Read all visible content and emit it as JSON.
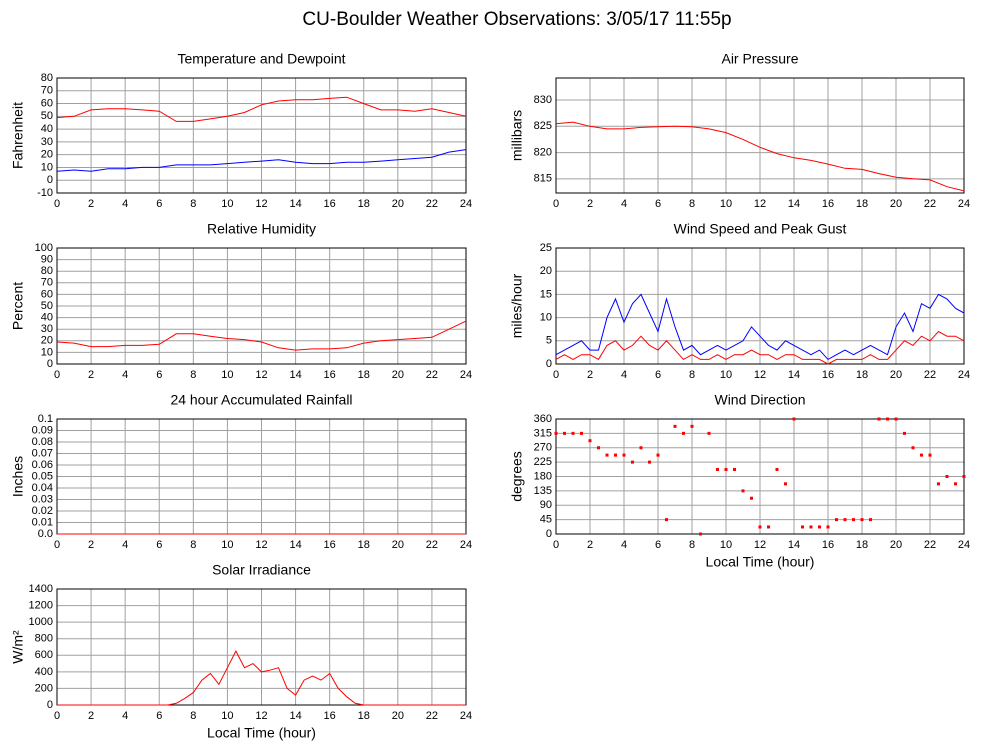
{
  "title": "CU-Boulder Weather Observations: 3/05/17 11:55p",
  "chart_data": [
    {
      "type": "line",
      "title": "Temperature and Dewpoint",
      "ylabel": "Fahrenheit",
      "x": [
        0,
        1,
        2,
        3,
        4,
        5,
        6,
        7,
        8,
        9,
        10,
        11,
        12,
        13,
        14,
        15,
        16,
        17,
        18,
        19,
        20,
        21,
        22,
        23,
        24
      ],
      "xlim": [
        0,
        24
      ],
      "xticks": [
        0,
        2,
        4,
        6,
        8,
        10,
        12,
        14,
        16,
        18,
        20,
        22,
        24
      ],
      "ylim": [
        -10,
        80
      ],
      "yticks": [
        -10,
        0,
        10,
        20,
        30,
        40,
        50,
        60,
        70,
        80
      ],
      "grid": true,
      "series": [
        {
          "color": "#ff0000",
          "values": [
            49,
            50,
            55,
            56,
            56,
            55,
            54,
            46,
            46,
            48,
            50,
            53,
            59,
            62,
            63,
            63,
            64,
            65,
            60,
            55,
            55,
            54,
            56,
            53,
            50
          ]
        },
        {
          "color": "#0000ff",
          "values": [
            7,
            8,
            7,
            9,
            9,
            10,
            10,
            12,
            12,
            12,
            13,
            14,
            15,
            16,
            14,
            13,
            13,
            14,
            14,
            15,
            16,
            17,
            18,
            22,
            24
          ]
        }
      ]
    },
    {
      "type": "line",
      "title": "Air Pressure",
      "ylabel": "millibars",
      "x": [
        0,
        1,
        2,
        3,
        4,
        5,
        6,
        7,
        8,
        9,
        10,
        11,
        12,
        13,
        14,
        15,
        16,
        17,
        18,
        19,
        20,
        21,
        22,
        23,
        24
      ],
      "xlim": [
        0,
        24
      ],
      "xticks": [
        0,
        2,
        4,
        6,
        8,
        10,
        12,
        14,
        16,
        18,
        20,
        22,
        24
      ],
      "ylim": [
        812.3,
        834.2
      ],
      "yticks": [
        815,
        820,
        825,
        830
      ],
      "grid": true,
      "series": [
        {
          "color": "#ff0000",
          "values": [
            825.5,
            825.8,
            825,
            824.5,
            824.5,
            824.8,
            824.9,
            825,
            824.9,
            824.5,
            823.8,
            822.5,
            821,
            819.8,
            819,
            818.5,
            817.8,
            817,
            816.8,
            816,
            815.3,
            815,
            814.8,
            813.5,
            812.7
          ]
        }
      ]
    },
    {
      "type": "line",
      "title": "Relative Humidity",
      "ylabel": "Percent",
      "x": [
        0,
        1,
        2,
        3,
        4,
        5,
        6,
        7,
        8,
        9,
        10,
        11,
        12,
        13,
        14,
        15,
        16,
        17,
        18,
        19,
        20,
        21,
        22,
        23,
        24
      ],
      "xlim": [
        0,
        24
      ],
      "xticks": [
        0,
        2,
        4,
        6,
        8,
        10,
        12,
        14,
        16,
        18,
        20,
        22,
        24
      ],
      "ylim": [
        0,
        100
      ],
      "yticks": [
        0,
        10,
        20,
        30,
        40,
        50,
        60,
        70,
        80,
        90,
        100
      ],
      "grid": true,
      "series": [
        {
          "color": "#ff0000",
          "values": [
            19,
            18,
            15,
            15,
            16,
            16,
            17,
            26,
            26,
            24,
            22,
            21,
            19,
            14,
            12,
            13,
            13,
            14,
            18,
            20,
            21,
            22,
            23,
            30,
            37
          ]
        }
      ]
    },
    {
      "type": "line",
      "title": "Wind Speed and Peak Gust",
      "ylabel": "miles/hour",
      "x": [
        0,
        0.5,
        1,
        1.5,
        2,
        2.5,
        3,
        3.5,
        4,
        4.5,
        5,
        5.5,
        6,
        6.5,
        7,
        7.5,
        8,
        8.5,
        9,
        9.5,
        10,
        10.5,
        11,
        11.5,
        12,
        12.5,
        13,
        13.5,
        14,
        14.5,
        15,
        15.5,
        16,
        16.5,
        17,
        17.5,
        18,
        18.5,
        19,
        19.5,
        20,
        20.5,
        21,
        21.5,
        22,
        22.5,
        23,
        23.5,
        24
      ],
      "xlim": [
        0,
        24
      ],
      "xticks": [
        0,
        2,
        4,
        6,
        8,
        10,
        12,
        14,
        16,
        18,
        20,
        22,
        24
      ],
      "ylim": [
        0,
        25
      ],
      "yticks": [
        0,
        5,
        10,
        15,
        20,
        25
      ],
      "grid": true,
      "series": [
        {
          "color": "#0000ff",
          "values": [
            2,
            3,
            4,
            5,
            3,
            3,
            10,
            14,
            9,
            13,
            15,
            11,
            7,
            14,
            8,
            3,
            4,
            2,
            3,
            4,
            3,
            4,
            5,
            8,
            6,
            4,
            3,
            5,
            4,
            3,
            2,
            3,
            1,
            2,
            3,
            2,
            3,
            4,
            3,
            2,
            8,
            11,
            7,
            13,
            12,
            15,
            14,
            12,
            11
          ]
        },
        {
          "color": "#ff0000",
          "values": [
            1,
            2,
            1,
            2,
            2,
            1,
            4,
            5,
            3,
            4,
            6,
            4,
            3,
            5,
            3,
            1,
            2,
            1,
            1,
            2,
            1,
            2,
            2,
            3,
            2,
            2,
            1,
            2,
            2,
            1,
            1,
            1,
            0,
            1,
            1,
            1,
            1,
            2,
            1,
            1,
            3,
            5,
            4,
            6,
            5,
            7,
            6,
            6,
            5
          ]
        }
      ]
    },
    {
      "type": "line",
      "title": "24 hour Accumulated Rainfall",
      "ylabel": "Inches",
      "x": [
        0,
        1,
        2,
        3,
        4,
        5,
        6,
        7,
        8,
        9,
        10,
        11,
        12,
        13,
        14,
        15,
        16,
        17,
        18,
        19,
        20,
        21,
        22,
        23,
        24
      ],
      "xlim": [
        0,
        24
      ],
      "xticks": [
        0,
        2,
        4,
        6,
        8,
        10,
        12,
        14,
        16,
        18,
        20,
        22,
        24
      ],
      "ylim": [
        0,
        0.1
      ],
      "yticks": [
        {
          "value": 0,
          "label": "0.0"
        },
        0.01,
        0.02,
        0.03,
        0.04,
        0.05,
        0.06,
        0.07,
        0.08,
        0.09,
        0.1
      ],
      "grid": true,
      "series": [
        {
          "color": "#ff0000",
          "values": [
            0,
            0,
            0,
            0,
            0,
            0,
            0,
            0,
            0,
            0,
            0,
            0,
            0,
            0,
            0,
            0,
            0,
            0,
            0,
            0,
            0,
            0,
            0,
            0,
            0
          ]
        }
      ]
    },
    {
      "type": "scatter",
      "title": "Wind Direction",
      "ylabel": "degrees",
      "xlabel": "Local Time (hour)",
      "x": [
        0,
        0.5,
        1,
        1.5,
        2,
        2.5,
        3,
        3.5,
        4,
        4.5,
        5,
        5.5,
        6,
        6.5,
        7,
        7.5,
        8,
        8.5,
        9,
        9.5,
        10,
        10.5,
        11,
        11.5,
        12,
        12.5,
        13,
        13.5,
        14,
        14.5,
        15,
        15.5,
        16,
        16.5,
        17,
        17.5,
        18,
        18.5,
        19,
        19.5,
        20,
        20.5,
        21,
        21.5,
        22,
        22.5,
        23,
        23.5,
        24
      ],
      "xlim": [
        0,
        24
      ],
      "xticks": [
        0,
        2,
        4,
        6,
        8,
        10,
        12,
        14,
        16,
        18,
        20,
        22,
        24
      ],
      "ylim": [
        0,
        360
      ],
      "yticks": [
        0,
        45,
        90,
        135,
        180,
        225,
        270,
        315,
        360
      ],
      "grid": true,
      "series": [
        {
          "color": "#ff0000",
          "values": [
            315,
            315,
            315,
            315,
            292,
            270,
            247,
            247,
            247,
            225,
            270,
            225,
            247,
            45,
            337,
            315,
            337,
            0,
            315,
            202,
            202,
            202,
            135,
            112,
            22,
            22,
            202,
            157,
            360,
            22,
            22,
            22,
            22,
            45,
            45,
            45,
            45,
            45,
            360,
            360,
            360,
            315,
            270,
            247,
            247,
            157,
            180,
            157,
            180
          ]
        }
      ]
    },
    {
      "type": "line",
      "title": "Solar Irradiance",
      "ylabel": "W/m²",
      "xlabel": "Local Time (hour)",
      "x": [
        0,
        0.5,
        1,
        1.5,
        2,
        2.5,
        3,
        3.5,
        4,
        4.5,
        5,
        5.5,
        6,
        6.5,
        7,
        7.5,
        8,
        8.5,
        9,
        9.5,
        10,
        10.5,
        11,
        11.5,
        12,
        12.5,
        13,
        13.5,
        14,
        14.5,
        15,
        15.5,
        16,
        16.5,
        17,
        17.5,
        18,
        18.5,
        19,
        19.5,
        20,
        20.5,
        21,
        21.5,
        22,
        22.5,
        23,
        23.5,
        24
      ],
      "xlim": [
        0,
        24
      ],
      "xticks": [
        0,
        2,
        4,
        6,
        8,
        10,
        12,
        14,
        16,
        18,
        20,
        22,
        24
      ],
      "ylim": [
        0,
        1400
      ],
      "yticks": [
        0,
        200,
        400,
        600,
        800,
        1000,
        1200,
        1400
      ],
      "grid": true,
      "series": [
        {
          "color": "#ff0000",
          "values": [
            0,
            0,
            0,
            0,
            0,
            0,
            0,
            0,
            0,
            0,
            0,
            0,
            0,
            0,
            20,
            80,
            150,
            300,
            380,
            250,
            450,
            650,
            450,
            500,
            400,
            420,
            450,
            200,
            120,
            300,
            350,
            300,
            380,
            200,
            100,
            20,
            0,
            0,
            0,
            0,
            0,
            0,
            0,
            0,
            0,
            0,
            0,
            0,
            0
          ]
        }
      ]
    }
  ]
}
